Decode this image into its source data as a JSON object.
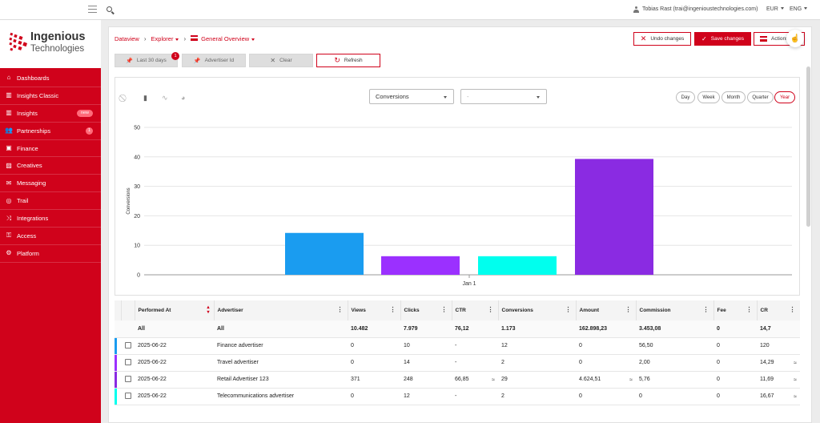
{
  "topbar": {
    "user": "Tobias Rast (trai@ingenioustechnologies.com)",
    "currency": "EUR",
    "language": "ENG"
  },
  "brand": {
    "name_line1": "Ingenious",
    "name_line2": "Technologies"
  },
  "sidebar": {
    "items": [
      {
        "label": "Dashboards",
        "icon": "home-icon",
        "glyph": "⌂"
      },
      {
        "label": "Insights Classic",
        "icon": "bar-chart-icon",
        "glyph": "▥"
      },
      {
        "label": "Insights",
        "icon": "bar-chart-icon",
        "glyph": "▥",
        "badge": "new"
      },
      {
        "label": "Partnerships",
        "icon": "users-icon",
        "glyph": "👥",
        "badge": "1"
      },
      {
        "label": "Finance",
        "icon": "money-icon",
        "glyph": "▣"
      },
      {
        "label": "Creatives",
        "icon": "image-icon",
        "glyph": "▨"
      },
      {
        "label": "Messaging",
        "icon": "envelope-icon",
        "glyph": "✉"
      },
      {
        "label": "Trail",
        "icon": "target-icon",
        "glyph": "◎"
      },
      {
        "label": "Integrations",
        "icon": "shuffle-icon",
        "glyph": "⤨"
      },
      {
        "label": "Access",
        "icon": "key-icon",
        "glyph": "⚿"
      },
      {
        "label": "Platform",
        "icon": "gears-icon",
        "glyph": "⚙"
      }
    ]
  },
  "breadcrumb": {
    "root": "Dataview",
    "level1": "Explorer",
    "level2": "General Overview"
  },
  "actions": {
    "undo": "Undo changes",
    "save": "Save changes",
    "actions": "Actions"
  },
  "filters": {
    "period": "Last 30 days",
    "period_badge": "1",
    "advertiser": "Advertiser Id",
    "clear": "Clear",
    "refresh": "Refresh"
  },
  "chart_controls": {
    "metric": "Conversions",
    "secondary": "-",
    "periods": [
      "Day",
      "Week",
      "Month",
      "Quarter",
      "Year"
    ],
    "active_period": "Year"
  },
  "chart_data": {
    "type": "bar",
    "categories": [
      "Jan 1"
    ],
    "ylabel": "Conversions",
    "ylim": [
      0,
      50
    ],
    "yticks": [
      0,
      10,
      20,
      30,
      40,
      50
    ],
    "grid": true,
    "bars": [
      {
        "value": 14.2,
        "color": "#1a9cf0"
      },
      {
        "value": 6.3,
        "color": "#9b30ff"
      },
      {
        "value": 6.3,
        "color": "#00ffee"
      },
      {
        "value": 39.3,
        "color": "#8a2be2"
      }
    ]
  },
  "table": {
    "columns": [
      "Performed At",
      "Advertiser",
      "Views",
      "Clicks",
      "CTR",
      "Conversions",
      "Amount",
      "Commission",
      "Fee",
      "CR"
    ],
    "totals": [
      "All",
      "All",
      "10.482",
      "7.979",
      "76,12",
      "1.173",
      "162.898,23",
      "3.453,08",
      "0",
      "14,7"
    ],
    "rows": [
      {
        "color": "#1a9cf0",
        "cells": [
          "2025-06-22",
          "Finance advertiser",
          "0",
          "10",
          "-",
          "12",
          "0",
          "56,50",
          "0",
          "120"
        ],
        "approx": [
          false,
          false,
          false,
          false,
          false,
          false,
          false,
          false,
          false,
          false
        ]
      },
      {
        "color": "#9b30ff",
        "cells": [
          "2025-06-22",
          "Travel advertiser",
          "0",
          "14",
          "-",
          "2",
          "0",
          "2,00",
          "0",
          "14,29"
        ],
        "approx": [
          false,
          false,
          false,
          false,
          false,
          false,
          false,
          false,
          false,
          true
        ]
      },
      {
        "color": "#8a2be2",
        "cells": [
          "2025-06-22",
          "Retail Advertiser 123",
          "371",
          "248",
          "66,85",
          "29",
          "4.624,51",
          "5,76",
          "0",
          "11,69"
        ],
        "approx": [
          false,
          false,
          false,
          false,
          true,
          false,
          true,
          false,
          false,
          true
        ]
      },
      {
        "color": "#00ffee",
        "cells": [
          "2025-06-22",
          "Telecommunications advertiser",
          "0",
          "12",
          "-",
          "2",
          "0",
          "0",
          "0",
          "16,67"
        ],
        "approx": [
          false,
          false,
          false,
          false,
          false,
          false,
          false,
          false,
          false,
          true
        ]
      }
    ]
  }
}
